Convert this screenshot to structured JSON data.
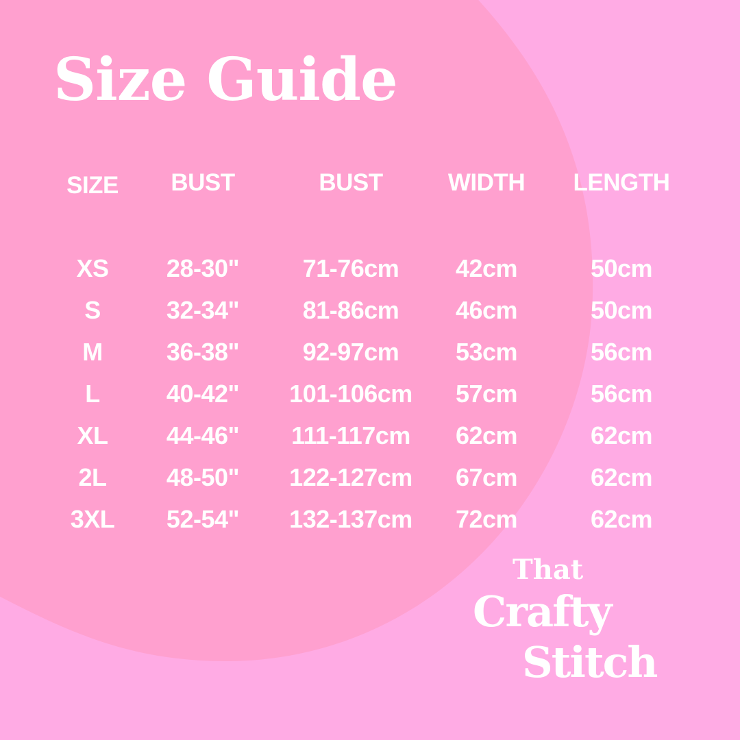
{
  "colors": {
    "background": "#ffabe4",
    "blob": "#ffa0cf",
    "text": "#ffffff"
  },
  "title": "Size Guide",
  "table": {
    "headers": [
      "SIZE",
      "BUST",
      "BUST",
      "WIDTH",
      "LENGTH"
    ],
    "rows": [
      [
        "XS",
        "28-30\"",
        "71-76cm",
        "42cm",
        "50cm"
      ],
      [
        "S",
        "32-34\"",
        "81-86cm",
        "46cm",
        "50cm"
      ],
      [
        "M",
        "36-38\"",
        "92-97cm",
        "53cm",
        "56cm"
      ],
      [
        "L",
        "40-42\"",
        "101-106cm",
        "57cm",
        "56cm"
      ],
      [
        "XL",
        "44-46\"",
        "111-117cm",
        "62cm",
        "62cm"
      ],
      [
        "2L",
        "48-50\"",
        "122-127cm",
        "67cm",
        "62cm"
      ],
      [
        "3XL",
        "52-54\"",
        "132-137cm",
        "72cm",
        "62cm"
      ]
    ]
  },
  "logo": {
    "line1": "That",
    "line2": "Crafty",
    "line3": "Stitch"
  }
}
